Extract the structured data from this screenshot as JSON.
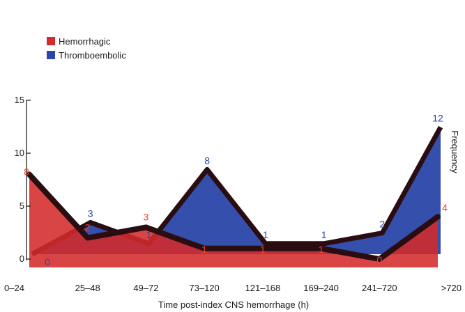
{
  "chart_data": {
    "type": "area",
    "title": "",
    "xlabel": "Time post-index CNS hemorrhage (h)",
    "ylabel": "Frequency",
    "categories": [
      "0–24",
      "25–48",
      "49–72",
      "73–120",
      "121–168",
      "169–240",
      "241–720",
      ">720"
    ],
    "ylim": [
      0,
      15
    ],
    "yticks": [
      "0",
      "5",
      "10",
      "15"
    ],
    "legend_position": "top-left",
    "series": [
      {
        "name": "Hemorrhagic",
        "values": [
          8,
          2,
          3,
          1,
          1,
          1,
          0,
          4
        ],
        "labels": [
          "8",
          "2",
          "3",
          "1",
          "1",
          "1",
          "0",
          "4"
        ]
      },
      {
        "name": "Thromboembolic",
        "values": [
          0,
          3,
          1,
          8,
          1,
          1,
          2,
          12
        ],
        "labels": [
          "0",
          "3",
          "1",
          "8",
          "1",
          "1",
          "2",
          "12"
        ]
      }
    ],
    "colors": {
      "hemorrhagic": "#d42a2a",
      "thromboembolic": "#2a46a8",
      "edge": "#2a0d10"
    }
  }
}
